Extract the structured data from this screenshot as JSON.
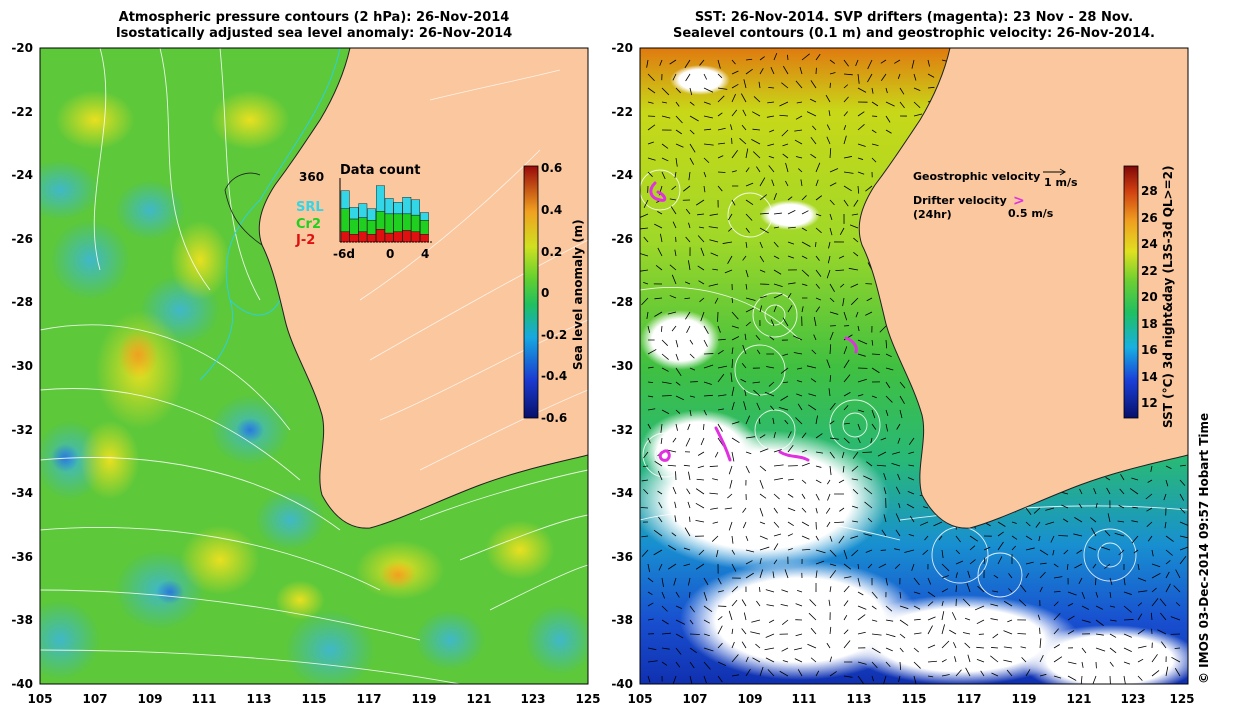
{
  "left_panel": {
    "title_line1": "Atmospheric pressure contours (2 hPa): 26-Nov-2014",
    "title_line2": "Isostatically adjusted sea level anomaly: 26-Nov-2014",
    "y_ticks": [
      "-20",
      "-22",
      "-24",
      "-26",
      "-28",
      "-30",
      "-32",
      "-34",
      "-36",
      "-38",
      "-40"
    ],
    "x_ticks": [
      "105",
      "107",
      "109",
      "111",
      "113",
      "115",
      "117",
      "119",
      "121",
      "123",
      "125"
    ],
    "colorbar": {
      "label": "Sea level anomaly (m)",
      "ticks": [
        "0.6",
        "0.4",
        "0.2",
        "0",
        "-0.2",
        "-0.4",
        "-0.6"
      ],
      "range": [
        -0.6,
        0.6
      ]
    },
    "inset": {
      "title": "Data count",
      "max_label": "360",
      "x_ticks": [
        "-6d",
        "0",
        "4"
      ],
      "legend": [
        {
          "name": "SRL",
          "color": "#33d6e6"
        },
        {
          "name": "Cr2",
          "color": "#20d020"
        },
        {
          "name": "J-2",
          "color": "#e01010"
        }
      ],
      "bars": [
        {
          "srl": 0.28,
          "cr2": 0.36,
          "j2": 0.16
        },
        {
          "srl": 0.18,
          "cr2": 0.24,
          "j2": 0.12
        },
        {
          "srl": 0.22,
          "cr2": 0.22,
          "j2": 0.16
        },
        {
          "srl": 0.18,
          "cr2": 0.22,
          "j2": 0.12
        },
        {
          "srl": 0.4,
          "cr2": 0.28,
          "j2": 0.2
        },
        {
          "srl": 0.24,
          "cr2": 0.3,
          "j2": 0.14
        },
        {
          "srl": 0.18,
          "cr2": 0.28,
          "j2": 0.16
        },
        {
          "srl": 0.26,
          "cr2": 0.26,
          "j2": 0.18
        },
        {
          "srl": 0.24,
          "cr2": 0.26,
          "j2": 0.16
        },
        {
          "srl": 0.12,
          "cr2": 0.22,
          "j2": 0.12
        }
      ]
    }
  },
  "right_panel": {
    "title_line1": "SST: 26-Nov-2014. SVP drifters (magenta): 23 Nov - 28 Nov.",
    "title_line2": "Sealevel contours (0.1 m) and geostrophic velocity: 26-Nov-2014.",
    "y_ticks": [
      "-20",
      "-22",
      "-24",
      "-26",
      "-28",
      "-30",
      "-32",
      "-34",
      "-36",
      "-38",
      "-40"
    ],
    "x_ticks": [
      "105",
      "107",
      "109",
      "111",
      "113",
      "115",
      "117",
      "119",
      "121",
      "123",
      "125"
    ],
    "colorbar": {
      "label": "SST (°C) 3d night&day (L3S-3d QL>=2)",
      "ticks": [
        "28",
        "26",
        "24",
        "22",
        "20",
        "18",
        "16",
        "14",
        "12"
      ],
      "range": [
        11,
        30
      ]
    },
    "legend": {
      "geo_label": "Geostrophic velocity",
      "geo_scale": "1 m/s",
      "drifter_label_line1": "Drifter velocity",
      "drifter_label_line2": "(24hr)",
      "drifter_glyph": ">",
      "drifter_scale": "0.5 m/s"
    }
  },
  "credit": "© IMOS 03-Dec-2014 09:57 Hobart Time",
  "colors": {
    "land": "#fac79e",
    "coast": "#202020",
    "drifter": "#e030e0",
    "contour": "#ffffff",
    "bathy": "#30d0d8"
  }
}
